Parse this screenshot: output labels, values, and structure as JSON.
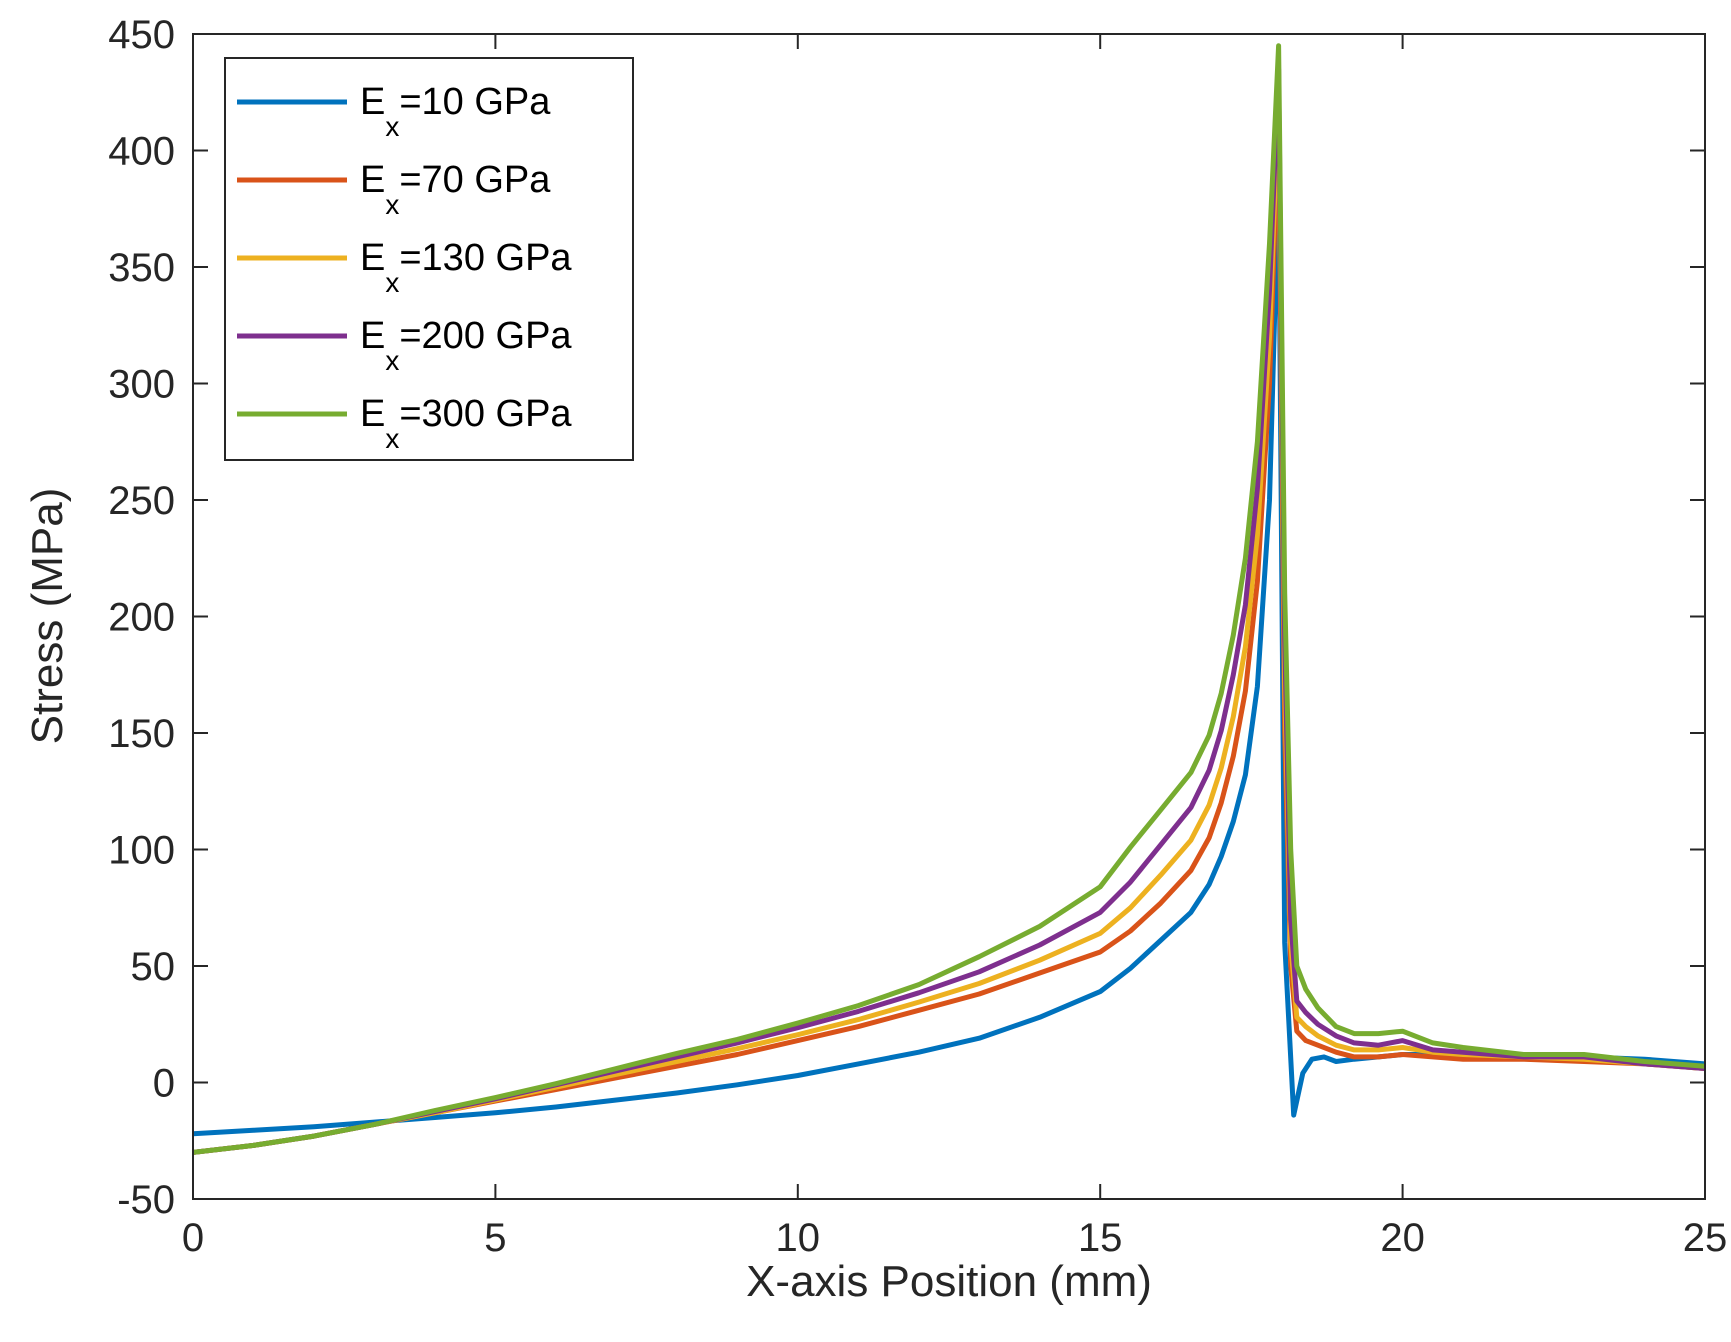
{
  "chart_data": {
    "type": "line",
    "title": "",
    "xlabel": "X-axis Position (mm)",
    "ylabel": "Stress (MPa)",
    "xlim": [
      0,
      25
    ],
    "ylim": [
      -50,
      450
    ],
    "xticks": [
      0,
      5,
      10,
      15,
      20,
      25
    ],
    "yticks": [
      -50,
      0,
      50,
      100,
      150,
      200,
      250,
      300,
      350,
      400,
      450
    ],
    "grid": false,
    "legend_position": "top-left",
    "series": [
      {
        "name": "Ex=10 GPa",
        "label_main": "E",
        "label_sub": "x",
        "label_rest": "=10 GPa",
        "color": "#0072BD",
        "x": [
          0,
          1,
          2,
          3,
          4,
          5,
          6,
          7,
          8,
          9,
          10,
          11,
          12,
          13,
          14,
          15,
          15.5,
          16,
          16.5,
          16.8,
          17,
          17.2,
          17.4,
          17.6,
          17.8,
          17.95,
          18.05,
          18.2,
          18.35,
          18.5,
          18.7,
          18.9,
          19.2,
          19.6,
          20,
          20.5,
          21,
          22,
          23,
          24,
          25
        ],
        "y": [
          -22,
          -20.5,
          -19,
          -17,
          -15,
          -13,
          -10.5,
          -7.5,
          -4.5,
          -1,
          3,
          8,
          13,
          19,
          28,
          39,
          49,
          61,
          73,
          85,
          97,
          112,
          132,
          170,
          250,
          390,
          60,
          -14,
          4,
          10,
          11,
          9,
          10,
          11,
          12,
          12,
          11,
          11,
          11,
          10,
          8
        ]
      },
      {
        "name": "Ex=70 GPa",
        "label_main": "E",
        "label_sub": "x",
        "label_rest": "=70 GPa",
        "color": "#D95319",
        "x": [
          0,
          1,
          2,
          3,
          4,
          5,
          6,
          7,
          8,
          9,
          10,
          11,
          12,
          13,
          14,
          15,
          15.5,
          16,
          16.5,
          16.8,
          17,
          17.2,
          17.4,
          17.6,
          17.8,
          17.95,
          18.05,
          18.15,
          18.25,
          18.4,
          18.6,
          18.9,
          19.2,
          19.6,
          20,
          20.5,
          21,
          22,
          23,
          24,
          25
        ],
        "y": [
          -30,
          -27,
          -23,
          -18,
          -13,
          -8,
          -3,
          2,
          7,
          12,
          18,
          24,
          31,
          38,
          47,
          56,
          65,
          77,
          91,
          105,
          120,
          140,
          168,
          215,
          300,
          415,
          150,
          50,
          22,
          18,
          16,
          13,
          11,
          11,
          12,
          11,
          10,
          10,
          9,
          8,
          6
        ]
      },
      {
        "name": "Ex=130 GPa",
        "label_main": "E",
        "label_sub": "x",
        "label_rest": "=130 GPa",
        "color": "#EDB120",
        "x": [
          0,
          1,
          2,
          3,
          4,
          5,
          6,
          7,
          8,
          9,
          10,
          11,
          12,
          13,
          14,
          15,
          15.5,
          16,
          16.5,
          16.8,
          17,
          17.2,
          17.4,
          17.6,
          17.8,
          17.95,
          18.05,
          18.15,
          18.25,
          18.4,
          18.6,
          18.9,
          19.2,
          19.6,
          20,
          20.5,
          21,
          22,
          23,
          24,
          25
        ],
        "y": [
          -30,
          -27,
          -23,
          -18,
          -13,
          -7.5,
          -2,
          3.5,
          9,
          14.5,
          20.5,
          27,
          34.5,
          42.5,
          52.5,
          64,
          75,
          89,
          104,
          119,
          135,
          157,
          187,
          235,
          320,
          425,
          170,
          60,
          28,
          24,
          20,
          16,
          14,
          14,
          15,
          13,
          12,
          11,
          10,
          8,
          6
        ]
      },
      {
        "name": "Ex=200 GPa",
        "label_main": "E",
        "label_sub": "x",
        "label_rest": "=200 GPa",
        "color": "#7E2F8E",
        "x": [
          0,
          1,
          2,
          3,
          4,
          5,
          6,
          7,
          8,
          9,
          10,
          11,
          12,
          13,
          14,
          15,
          15.5,
          16,
          16.5,
          16.8,
          17,
          17.2,
          17.4,
          17.6,
          17.8,
          17.95,
          18.05,
          18.15,
          18.25,
          18.4,
          18.6,
          18.9,
          19.2,
          19.6,
          20,
          20.5,
          21,
          22,
          23,
          24,
          25
        ],
        "y": [
          -30,
          -27,
          -23,
          -18,
          -12.5,
          -7,
          -1,
          5,
          11,
          17,
          23.5,
          30.5,
          38.5,
          47.5,
          59,
          73,
          86,
          102,
          118,
          134,
          151,
          175,
          205,
          255,
          340,
          435,
          190,
          70,
          35,
          30,
          25,
          20,
          17,
          16,
          18,
          14,
          13,
          11,
          11,
          8,
          6
        ]
      },
      {
        "name": "Ex=300 GPa",
        "label_main": "E",
        "label_sub": "x",
        "label_rest": "=300 GPa",
        "color": "#77AC30",
        "x": [
          0,
          1,
          2,
          3,
          4,
          5,
          6,
          7,
          8,
          9,
          10,
          11,
          12,
          13,
          14,
          15,
          15.5,
          16,
          16.5,
          16.8,
          17,
          17.2,
          17.4,
          17.6,
          17.8,
          17.95,
          18.05,
          18.15,
          18.25,
          18.4,
          18.6,
          18.9,
          19.2,
          19.6,
          20,
          20.5,
          21,
          22,
          23,
          24,
          25
        ],
        "y": [
          -30,
          -27,
          -23,
          -18,
          -12,
          -6.5,
          -0.5,
          6,
          12.5,
          18.5,
          25.5,
          33,
          42,
          54,
          67,
          84,
          101,
          117,
          133,
          149,
          167,
          192,
          225,
          275,
          360,
          445,
          210,
          100,
          50,
          40,
          32,
          24,
          21,
          21,
          22,
          17,
          15,
          12,
          12,
          9,
          7
        ]
      }
    ]
  }
}
